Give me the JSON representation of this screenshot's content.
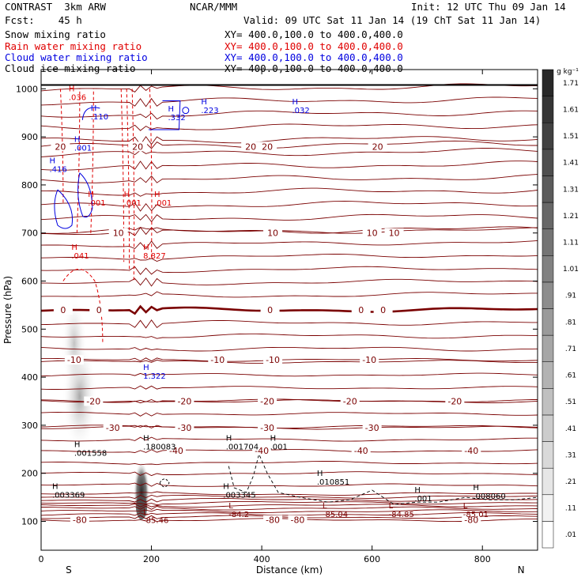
{
  "header": {
    "title": "CONTRAST  3km ARW",
    "fcst": "Fcst:    45 h",
    "org": "NCAR/MMM",
    "init": "Init: 12 UTC Thu 09 Jan 14",
    "valid": "Valid: 09 UTC Sat 11 Jan 14 (19 ChT Sat 11 Jan 14)",
    "fields": [
      {
        "name": "Snow mixing ratio",
        "xy": "XY= 400.0,100.0 to 400.0,400.0",
        "color": "#000000"
      },
      {
        "name": "Rain water mixing ratio",
        "xy": "XY= 400.0,100.0 to 400.0,400.0",
        "color": "#e00000"
      },
      {
        "name": "Cloud water mixing ratio",
        "xy": "XY= 400.0,100.0 to 400.0,400.0",
        "color": "#0000e0"
      },
      {
        "name": "Cloud ice mixing ratio",
        "xy": "XY= 400.0,100.0 to 400.0,400.0",
        "color": "#000000"
      }
    ]
  },
  "colors": {
    "temp": "#7a0000",
    "rain": "#e00000",
    "cloud": "#0000e0",
    "ice": "#000000"
  },
  "chart_data": {
    "type": "heatmap",
    "xlabel": "Distance (km)",
    "ylabel": "Pressure (hPa)",
    "xlim": [
      0,
      900
    ],
    "ylim": [
      1040,
      40
    ],
    "x_ticks": [
      0,
      200,
      400,
      600,
      800
    ],
    "x_tick_labels": [
      "0",
      "200",
      "400",
      "600",
      "800"
    ],
    "y_ticks": [
      100,
      200,
      300,
      400,
      500,
      600,
      700,
      800,
      900,
      1000
    ],
    "y_tick_labels": [
      "100",
      "200",
      "300",
      "400",
      "500",
      "600",
      "700",
      "800",
      "900",
      "1000"
    ],
    "end_labels": {
      "left": "S",
      "right": "N"
    },
    "colorbar": {
      "unit": "g kg⁻¹",
      "levels": [
        ".01",
        ".11",
        ".21",
        ".31",
        ".41",
        ".51",
        ".61",
        ".71",
        ".81",
        ".91",
        "1.01",
        "1.11",
        "1.21",
        "1.31",
        "1.41",
        "1.51",
        "1.61",
        "1.71"
      ],
      "values": [
        0.01,
        0.11,
        0.21,
        0.31,
        0.41,
        0.51,
        0.61,
        0.71,
        0.81,
        0.91,
        1.01,
        1.11,
        1.21,
        1.31,
        1.41,
        1.51,
        1.61,
        1.71
      ]
    },
    "temperature_isotherms": [
      {
        "label": "-80",
        "p": 103,
        "label_x": [
          70,
          420,
          465,
          780
        ]
      },
      {
        "label": "-40",
        "p": 247,
        "label_x": [
          245,
          400,
          580,
          780
        ]
      },
      {
        "label": "-30",
        "p": 295,
        "label_x": [
          130,
          260,
          410,
          600
        ]
      },
      {
        "label": "-20",
        "p": 350,
        "label_x": [
          95,
          260,
          410,
          560,
          750
        ]
      },
      {
        "label": "-10",
        "p": 436,
        "label_x": [
          60,
          320,
          420,
          595
        ]
      },
      {
        "label": "0",
        "p": 540,
        "label_x": [
          40,
          105,
          415,
          580,
          620
        ]
      },
      {
        "label": "10",
        "p": 700,
        "label_x": [
          140,
          420,
          600,
          640
        ]
      },
      {
        "label": "20",
        "p": 880,
        "label_x": [
          35,
          175,
          380,
          410,
          610
        ]
      }
    ],
    "extrema_labels": [
      {
        "kind": "L",
        "value": "-85.46",
        "x": 185,
        "p": 105
      },
      {
        "kind": "L",
        "value": "-84.2",
        "x": 340,
        "p": 117
      },
      {
        "kind": "L",
        "value": "-85.04",
        "x": 510,
        "p": 117
      },
      {
        "kind": "L",
        "value": "-84.85",
        "x": 630,
        "p": 117
      },
      {
        "kind": "L",
        "value": "-85.01",
        "x": 765,
        "p": 117
      },
      {
        "kind": "H",
        "value": ".003369",
        "x": 20,
        "p": 158
      },
      {
        "kind": "H",
        "value": ".003345",
        "x": 330,
        "p": 158
      },
      {
        "kind": "H",
        "value": ".001",
        "x": 677,
        "p": 150
      },
      {
        "kind": "H",
        "value": ".008060",
        "x": 783,
        "p": 155
      },
      {
        "kind": "H",
        "value": ".010851",
        "x": 500,
        "p": 185
      },
      {
        "kind": "H",
        "value": ".001558",
        "x": 60,
        "p": 245
      },
      {
        "kind": "H",
        "value": ".180083",
        "x": 185,
        "p": 258
      },
      {
        "kind": "H",
        "value": ".001704",
        "x": 335,
        "p": 258
      },
      {
        "kind": "H",
        "value": ".001",
        "x": 415,
        "p": 258
      },
      {
        "kind": "H",
        "value": "1.322",
        "x": 185,
        "p": 405
      },
      {
        "kind": "H",
        "value": ".041",
        "x": 55,
        "p": 655
      },
      {
        "kind": "H",
        "value": "8.827",
        "x": 185,
        "p": 655
      },
      {
        "kind": "H",
        "value": ".001",
        "x": 85,
        "p": 765
      },
      {
        "kind": "H",
        "value": ".001",
        "x": 150,
        "p": 765
      },
      {
        "kind": "H",
        "value": ".001",
        "x": 205,
        "p": 765
      },
      {
        "kind": "H",
        "value": ".416",
        "x": 15,
        "p": 835
      },
      {
        "kind": "H",
        "value": ".001",
        "x": 60,
        "p": 880
      },
      {
        "kind": "H",
        "value": ".110",
        "x": 90,
        "p": 945
      },
      {
        "kind": "H",
        "value": ".332",
        "x": 230,
        "p": 943
      },
      {
        "kind": "H",
        "value": ".223",
        "x": 290,
        "p": 958
      },
      {
        "kind": "H",
        "value": ".032",
        "x": 455,
        "p": 958
      },
      {
        "kind": "H",
        "value": ".036",
        "x": 50,
        "p": 985
      }
    ]
  }
}
